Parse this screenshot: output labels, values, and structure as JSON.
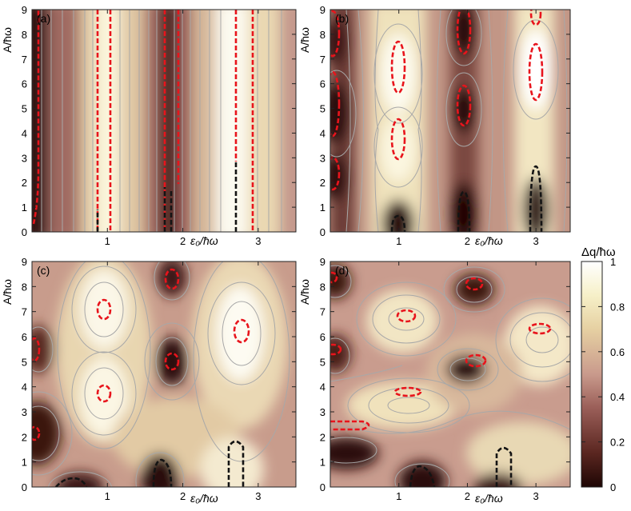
{
  "figure": {
    "axis_x_label": "ε₀/ħω",
    "axis_y_label": "A/ħω",
    "colorbar_label": "Δq/ħω",
    "colorbar_ticks": [
      "0",
      "0.2",
      "0.4",
      "0.6",
      "0.8",
      "1"
    ]
  },
  "colors": {
    "low": "#2a0a08",
    "mid": "#b8807a",
    "high": "#ffffff",
    "contour": "#a8a8a8",
    "red_dashed": "#e8141c",
    "black_dashed": "#141414"
  },
  "chart_data": [
    {
      "type": "heatmap",
      "panel_label": "(a)",
      "xlabel": "ε₀/ħω",
      "ylabel": "A/ħω",
      "xlim": [
        0,
        3.5
      ],
      "ylim": [
        0,
        9
      ],
      "x_ticks": [
        "1",
        "2",
        "3"
      ],
      "y_ticks": [
        "0",
        "1",
        "2",
        "3",
        "4",
        "5",
        "6",
        "7",
        "8",
        "9"
      ],
      "colorbar": "Δq/ħω",
      "minima_x": [
        0,
        2
      ],
      "maxima_x": [
        1,
        3
      ]
    },
    {
      "type": "heatmap",
      "panel_label": "(b)",
      "xlabel": "ε₀/ħω",
      "ylabel": "A/ħω",
      "xlim": [
        0,
        3.5
      ],
      "ylim": [
        0,
        9
      ],
      "x_ticks": [
        "1",
        "2",
        "3"
      ],
      "y_ticks": [
        "0",
        "1",
        "2",
        "3",
        "4",
        "5",
        "6",
        "7",
        "8",
        "9"
      ],
      "colorbar": "Δq/ħω",
      "minima": [
        [
          2,
          8.3
        ],
        [
          2,
          5.0
        ],
        [
          0,
          5.5
        ],
        [
          0,
          2.2
        ]
      ],
      "maxima": [
        [
          1,
          7.2
        ],
        [
          1,
          3.8
        ],
        [
          3,
          6.5
        ]
      ]
    },
    {
      "type": "heatmap",
      "panel_label": "(c)",
      "xlabel": "ε₀/ħω",
      "ylabel": "A/ħω",
      "xlim": [
        0,
        3.5
      ],
      "ylim": [
        0,
        9
      ],
      "x_ticks": [
        "1",
        "2",
        "3"
      ],
      "y_ticks": [
        "0",
        "1",
        "2",
        "3",
        "4",
        "5",
        "6",
        "7",
        "8",
        "9"
      ],
      "colorbar": "Δq/ħω",
      "minima": [
        [
          2,
          8.3
        ],
        [
          2,
          4.9
        ],
        [
          0,
          5.2
        ],
        [
          0,
          2.1
        ],
        [
          2,
          0.6
        ],
        [
          0.6,
          0.0
        ]
      ],
      "maxima": [
        [
          1,
          7.0
        ],
        [
          1,
          3.7
        ],
        [
          3,
          6.3
        ]
      ]
    },
    {
      "type": "heatmap",
      "panel_label": "(d)",
      "xlabel": "ε₀/ħω",
      "ylabel": "A/ħω",
      "xlim": [
        0,
        3.5
      ],
      "ylim": [
        0,
        9
      ],
      "x_ticks": [
        "1",
        "2",
        "3"
      ],
      "y_ticks": [
        "0",
        "1",
        "2",
        "3",
        "4",
        "5",
        "6",
        "7",
        "8",
        "9"
      ],
      "colorbar": "Δq/ħω",
      "minima": [
        [
          2,
          8.2
        ],
        [
          2,
          4.6
        ],
        [
          0,
          5.3
        ],
        [
          0.1,
          1.6
        ],
        [
          1.3,
          0.2
        ]
      ],
      "maxima": [
        [
          1,
          6.6
        ],
        [
          1,
          3.4
        ],
        [
          3,
          6.0
        ]
      ]
    }
  ]
}
